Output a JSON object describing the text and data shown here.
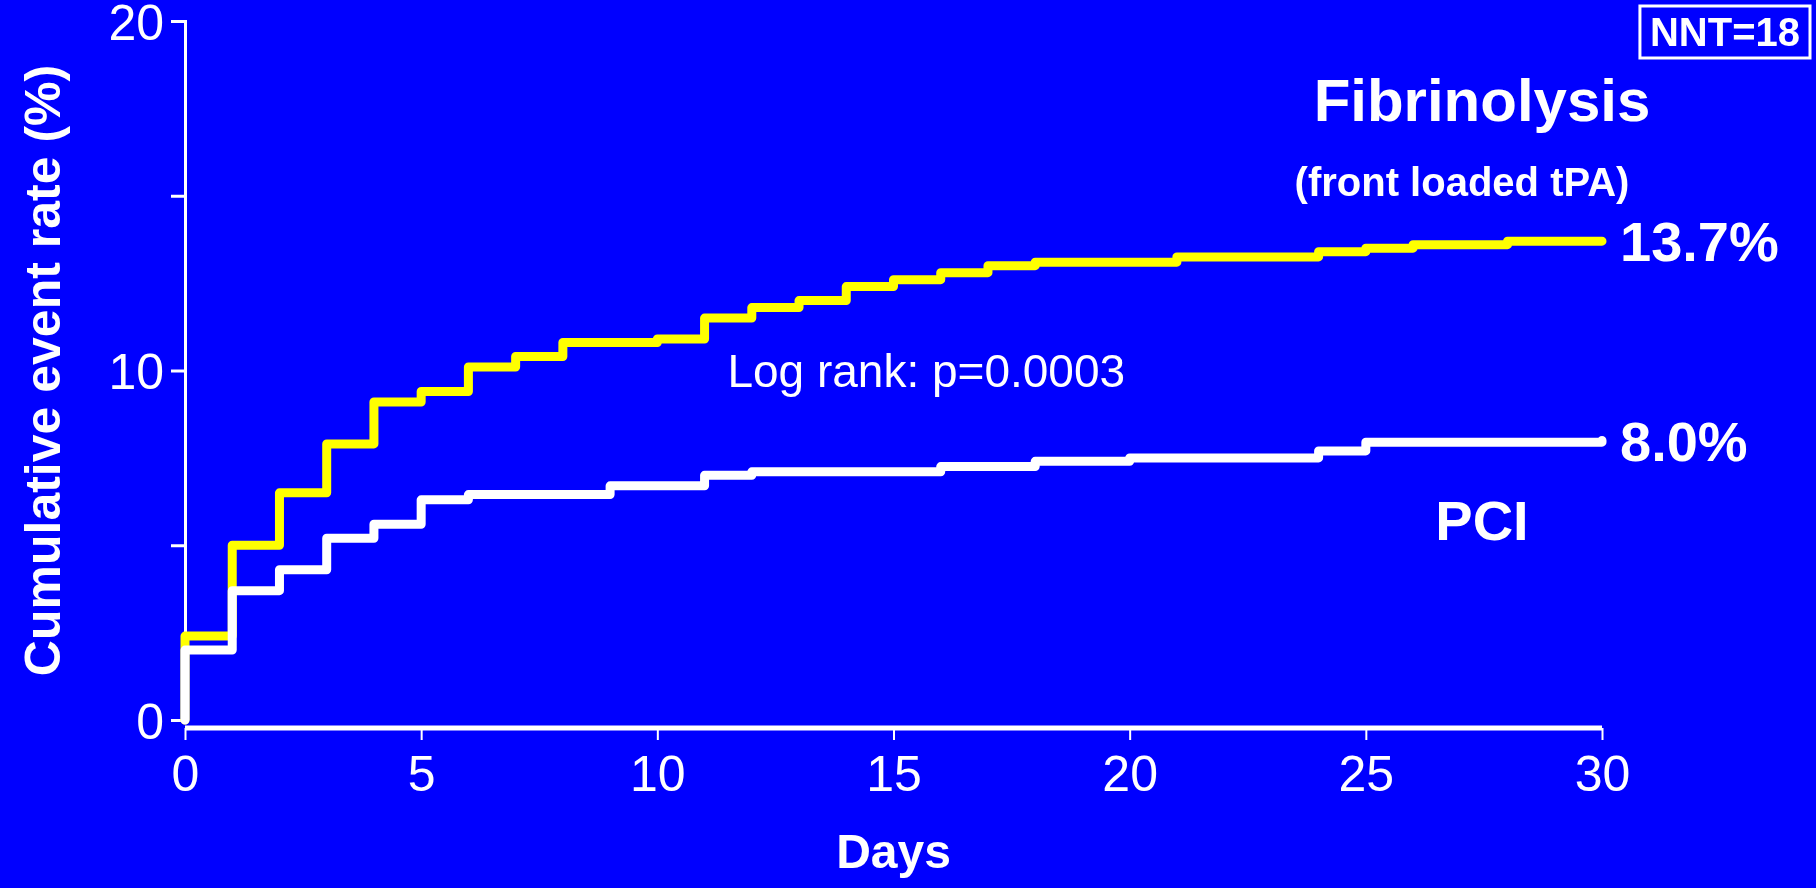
{
  "chart_data": {
    "type": "step",
    "xlabel": "Days",
    "ylabel": "Cumulative event rate (%)",
    "xlim": [
      0,
      30
    ],
    "ylim": [
      0,
      20
    ],
    "xticks": [
      0,
      5,
      10,
      15,
      20,
      25,
      30
    ],
    "yticks": [
      0,
      {
        "value": 5,
        "label": null
      },
      10,
      {
        "value": 15,
        "label": null
      },
      20
    ],
    "grid": false,
    "marker": "none",
    "line_style": "solid",
    "series": [
      {
        "name": "Fibrinolysis",
        "color": "#ffff00",
        "x": [
          0,
          0,
          1,
          2,
          3,
          4,
          5,
          6,
          7,
          8,
          10,
          11,
          12,
          13,
          14,
          15,
          16,
          17,
          18,
          21,
          24,
          25,
          26,
          28,
          30
        ],
        "values": [
          0,
          2.4,
          5.0,
          6.5,
          7.9,
          9.1,
          9.4,
          10.1,
          10.4,
          10.8,
          10.9,
          11.5,
          11.8,
          12.0,
          12.4,
          12.6,
          12.8,
          13.0,
          13.1,
          13.25,
          13.4,
          13.5,
          13.6,
          13.7,
          13.7
        ],
        "value_labels": [
          null,
          null,
          null,
          null,
          null,
          null,
          null,
          null,
          null,
          null,
          null,
          null,
          null,
          null,
          null,
          null,
          null,
          null,
          null,
          null,
          null,
          null,
          null,
          null,
          "13.7%"
        ]
      },
      {
        "name": "PCI",
        "color": "#ffffff",
        "x": [
          0,
          0,
          1,
          2,
          3,
          4,
          5,
          6,
          9,
          11,
          12,
          16,
          18,
          20,
          24,
          25,
          30
        ],
        "values": [
          0,
          2.0,
          3.7,
          4.3,
          5.2,
          5.6,
          6.3,
          6.45,
          6.7,
          7.0,
          7.1,
          7.25,
          7.4,
          7.5,
          7.7,
          7.95,
          8.0
        ],
        "value_labels": [
          null,
          null,
          null,
          null,
          null,
          null,
          null,
          null,
          null,
          null,
          null,
          null,
          null,
          null,
          null,
          null,
          "8.0%"
        ]
      }
    ],
    "annotations": [
      "(front loaded tPA)",
      "Log rank: p=0.0003",
      "NNT=18"
    ]
  }
}
